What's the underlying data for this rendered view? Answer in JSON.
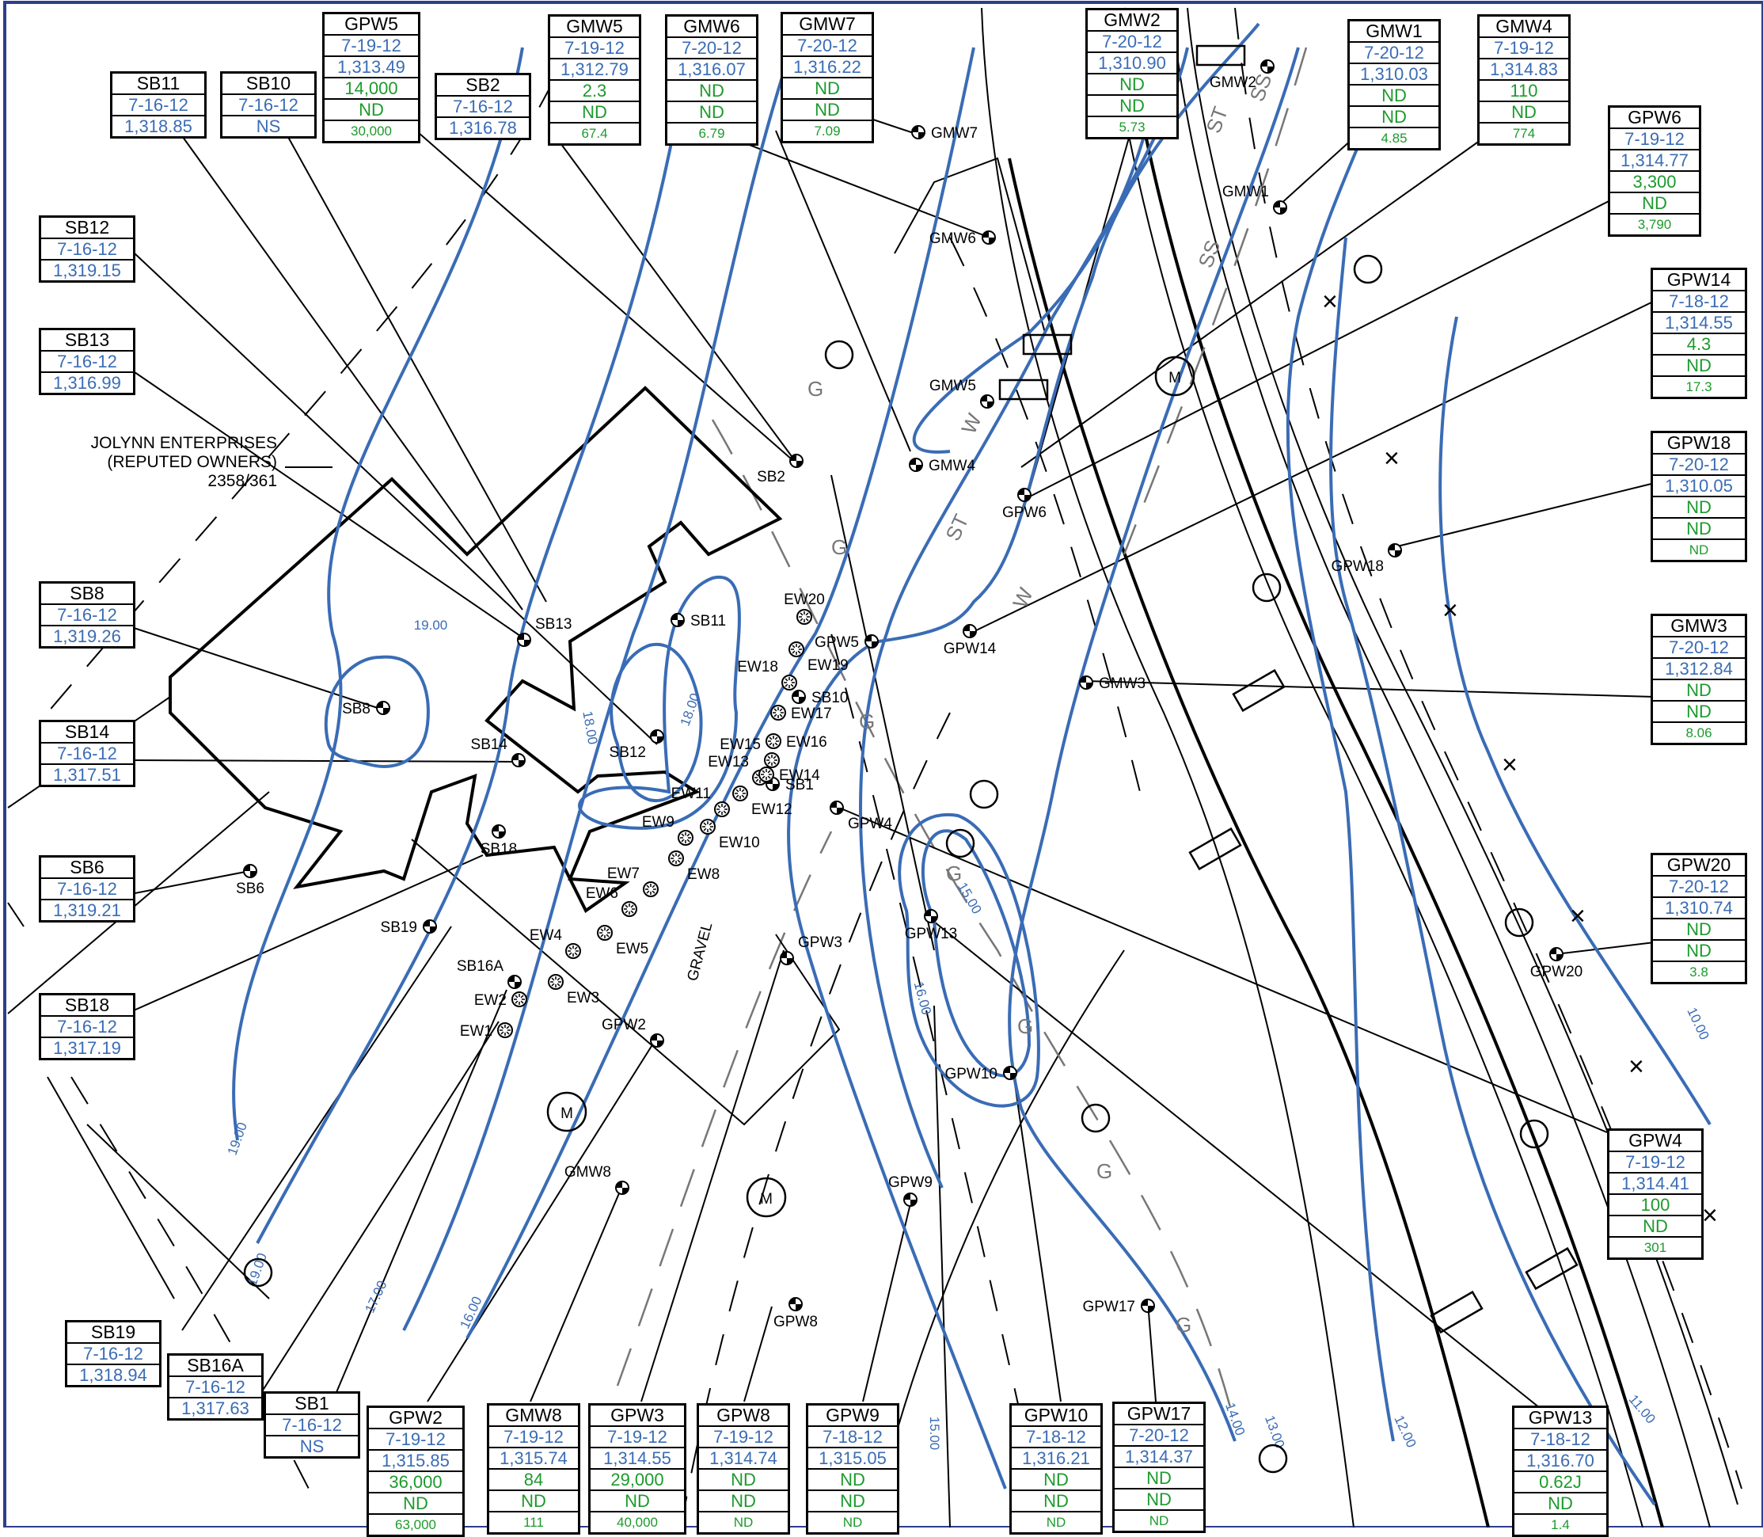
{
  "owner_note": {
    "line1": "JOLYNN ENTERPRISES",
    "line2": "(REPUTED OWNERS)",
    "line3": "2358/361"
  },
  "surface_label": "GRAVEL",
  "utility_labels": {
    "meter": "M",
    "sanitary": "SS",
    "gas": "G",
    "storm": "ST",
    "water": "W"
  },
  "colors": {
    "contour": "#3a6cb5",
    "date_elev": "#3a6cb5",
    "results": "#1c9a2c",
    "linework": "#000000"
  },
  "icon_names": [
    "monitoring-well-icon",
    "extraction-well-icon",
    "meter-manhole-icon",
    "utility-pole-icon",
    "fence-x-icon"
  ],
  "contours": [
    {
      "id": "c19a",
      "label": "19.00"
    },
    {
      "id": "c19b",
      "label": "19.00"
    },
    {
      "id": "c19c",
      "label": "19.00"
    },
    {
      "id": "c18a",
      "label": "18.00"
    },
    {
      "id": "c18b",
      "label": "18.00"
    },
    {
      "id": "c17",
      "label": "17.00"
    },
    {
      "id": "c16a",
      "label": "16.00"
    },
    {
      "id": "c16b",
      "label": "16.00"
    },
    {
      "id": "c15a",
      "label": "15.00"
    },
    {
      "id": "c15b",
      "label": "15.00"
    },
    {
      "id": "c14",
      "label": "14.00"
    },
    {
      "id": "c13",
      "label": "13.00"
    },
    {
      "id": "c12",
      "label": "12.00"
    },
    {
      "id": "c11",
      "label": "11.00"
    },
    {
      "id": "c10",
      "label": "10.00"
    }
  ],
  "wells": [
    {
      "id": "SB1",
      "name": "SB1"
    },
    {
      "id": "SB2",
      "name": "SB2"
    },
    {
      "id": "SB6",
      "name": "SB6"
    },
    {
      "id": "SB8",
      "name": "SB8"
    },
    {
      "id": "SB10",
      "name": "SB10"
    },
    {
      "id": "SB11",
      "name": "SB11"
    },
    {
      "id": "SB12",
      "name": "SB12"
    },
    {
      "id": "SB13",
      "name": "SB13"
    },
    {
      "id": "SB14",
      "name": "SB14"
    },
    {
      "id": "SB16A",
      "name": "SB16A"
    },
    {
      "id": "SB18",
      "name": "SB18"
    },
    {
      "id": "SB19",
      "name": "SB19"
    },
    {
      "id": "GMW1",
      "name": "GMW1"
    },
    {
      "id": "GMW2",
      "name": "GMW2"
    },
    {
      "id": "GMW3",
      "name": "GMW3"
    },
    {
      "id": "GMW4",
      "name": "GMW4"
    },
    {
      "id": "GMW5",
      "name": "GMW5"
    },
    {
      "id": "GMW6",
      "name": "GMW6"
    },
    {
      "id": "GMW7",
      "name": "GMW7"
    },
    {
      "id": "GMW8",
      "name": "GMW8"
    },
    {
      "id": "GPW2",
      "name": "GPW2"
    },
    {
      "id": "GPW3",
      "name": "GPW3"
    },
    {
      "id": "GPW4",
      "name": "GPW4"
    },
    {
      "id": "GPW5",
      "name": "GPW5"
    },
    {
      "id": "GPW6",
      "name": "GPW6"
    },
    {
      "id": "GPW8",
      "name": "GPW8"
    },
    {
      "id": "GPW9",
      "name": "GPW9"
    },
    {
      "id": "GPW10",
      "name": "GPW10"
    },
    {
      "id": "GPW13",
      "name": "GPW13"
    },
    {
      "id": "GPW14",
      "name": "GPW14"
    },
    {
      "id": "GPW17",
      "name": "GPW17"
    },
    {
      "id": "GPW18",
      "name": "GPW18"
    },
    {
      "id": "GPW20",
      "name": "GPW20"
    }
  ],
  "extraction_wells": [
    "EW1",
    "EW2",
    "EW3",
    "EW4",
    "EW5",
    "EW6",
    "EW7",
    "EW8",
    "EW9",
    "EW10",
    "EW11",
    "EW12",
    "EW13",
    "EW14",
    "EW15",
    "EW16",
    "EW17",
    "EW18",
    "EW19",
    "EW20"
  ],
  "labels": [
    {
      "id": "GPW5",
      "rows": [
        "GPW5",
        "7-19-12",
        "1,313.49",
        "14,000",
        "ND",
        "30,000"
      ]
    },
    {
      "id": "GMW5",
      "rows": [
        "GMW5",
        "7-19-12",
        "1,312.79",
        "2.3",
        "ND",
        "67.4"
      ]
    },
    {
      "id": "GMW6",
      "rows": [
        "GMW6",
        "7-20-12",
        "1,316.07",
        "ND",
        "ND",
        "6.79"
      ]
    },
    {
      "id": "GMW7",
      "rows": [
        "GMW7",
        "7-20-12",
        "1,316.22",
        "ND",
        "ND",
        "7.09"
      ]
    },
    {
      "id": "GMW2",
      "rows": [
        "GMW2",
        "7-20-12",
        "1,310.90",
        "ND",
        "ND",
        "5.73"
      ]
    },
    {
      "id": "GMW1",
      "rows": [
        "GMW1",
        "7-20-12",
        "1,310.03",
        "ND",
        "ND",
        "4.85"
      ]
    },
    {
      "id": "GMW4",
      "rows": [
        "GMW4",
        "7-19-12",
        "1,314.83",
        "110",
        "ND",
        "774"
      ]
    },
    {
      "id": "GPW6",
      "rows": [
        "GPW6",
        "7-19-12",
        "1,314.77",
        "3,300",
        "ND",
        "3,790"
      ]
    },
    {
      "id": "GPW14",
      "rows": [
        "GPW14",
        "7-18-12",
        "1,314.55",
        "4.3",
        "ND",
        "17.3"
      ]
    },
    {
      "id": "GPW18",
      "rows": [
        "GPW18",
        "7-20-12",
        "1,310.05",
        "ND",
        "ND",
        "ND"
      ]
    },
    {
      "id": "GMW3",
      "rows": [
        "GMW3",
        "7-20-12",
        "1,312.84",
        "ND",
        "ND",
        "8.06"
      ]
    },
    {
      "id": "GPW20",
      "rows": [
        "GPW20",
        "7-20-12",
        "1,310.74",
        "ND",
        "ND",
        "3.8"
      ]
    },
    {
      "id": "GPW4",
      "rows": [
        "GPW4",
        "7-19-12",
        "1,314.41",
        "100",
        "ND",
        "301"
      ]
    },
    {
      "id": "GPW13",
      "rows": [
        "GPW13",
        "7-18-12",
        "1,316.70",
        "0.62J",
        "ND",
        "1.4"
      ]
    },
    {
      "id": "GPW17",
      "rows": [
        "GPW17",
        "7-20-12",
        "1,314.37",
        "ND",
        "ND",
        "ND"
      ]
    },
    {
      "id": "GPW10",
      "rows": [
        "GPW10",
        "7-18-12",
        "1,316.21",
        "ND",
        "ND",
        "ND"
      ]
    },
    {
      "id": "GPW9",
      "rows": [
        "GPW9",
        "7-18-12",
        "1,315.05",
        "ND",
        "ND",
        "ND"
      ]
    },
    {
      "id": "GPW8",
      "rows": [
        "GPW8",
        "7-19-12",
        "1,314.74",
        "ND",
        "ND",
        "ND"
      ]
    },
    {
      "id": "GPW3",
      "rows": [
        "GPW3",
        "7-19-12",
        "1,314.55",
        "29,000",
        "ND",
        "40,000"
      ]
    },
    {
      "id": "GMW8",
      "rows": [
        "GMW8",
        "7-19-12",
        "1,315.74",
        "84",
        "ND",
        "111"
      ]
    },
    {
      "id": "GPW2",
      "rows": [
        "GPW2",
        "7-19-12",
        "1,315.85",
        "36,000",
        "ND",
        "63,000"
      ]
    },
    {
      "id": "SB1",
      "rows": [
        "SB1",
        "7-16-12",
        "NS"
      ]
    },
    {
      "id": "SB16A",
      "rows": [
        "SB16A",
        "7-16-12",
        "1,317.63"
      ]
    },
    {
      "id": "SB19",
      "rows": [
        "SB19",
        "7-16-12",
        "1,318.94"
      ]
    },
    {
      "id": "SB18",
      "rows": [
        "SB18",
        "7-16-12",
        "1,317.19"
      ]
    },
    {
      "id": "SB6",
      "rows": [
        "SB6",
        "7-16-12",
        "1,319.21"
      ]
    },
    {
      "id": "SB14",
      "rows": [
        "SB14",
        "7-16-12",
        "1,317.51"
      ]
    },
    {
      "id": "SB8",
      "rows": [
        "SB8",
        "7-16-12",
        "1,319.26"
      ]
    },
    {
      "id": "SB13",
      "rows": [
        "SB13",
        "7-16-12",
        "1,316.99"
      ]
    },
    {
      "id": "SB12",
      "rows": [
        "SB12",
        "7-16-12",
        "1,319.15"
      ]
    },
    {
      "id": "SB11",
      "rows": [
        "SB11",
        "7-16-12",
        "1,318.85"
      ]
    },
    {
      "id": "SB10",
      "rows": [
        "SB10",
        "7-16-12",
        "NS"
      ]
    },
    {
      "id": "SB2",
      "rows": [
        "SB2",
        "7-16-12",
        "1,316.78"
      ]
    }
  ]
}
